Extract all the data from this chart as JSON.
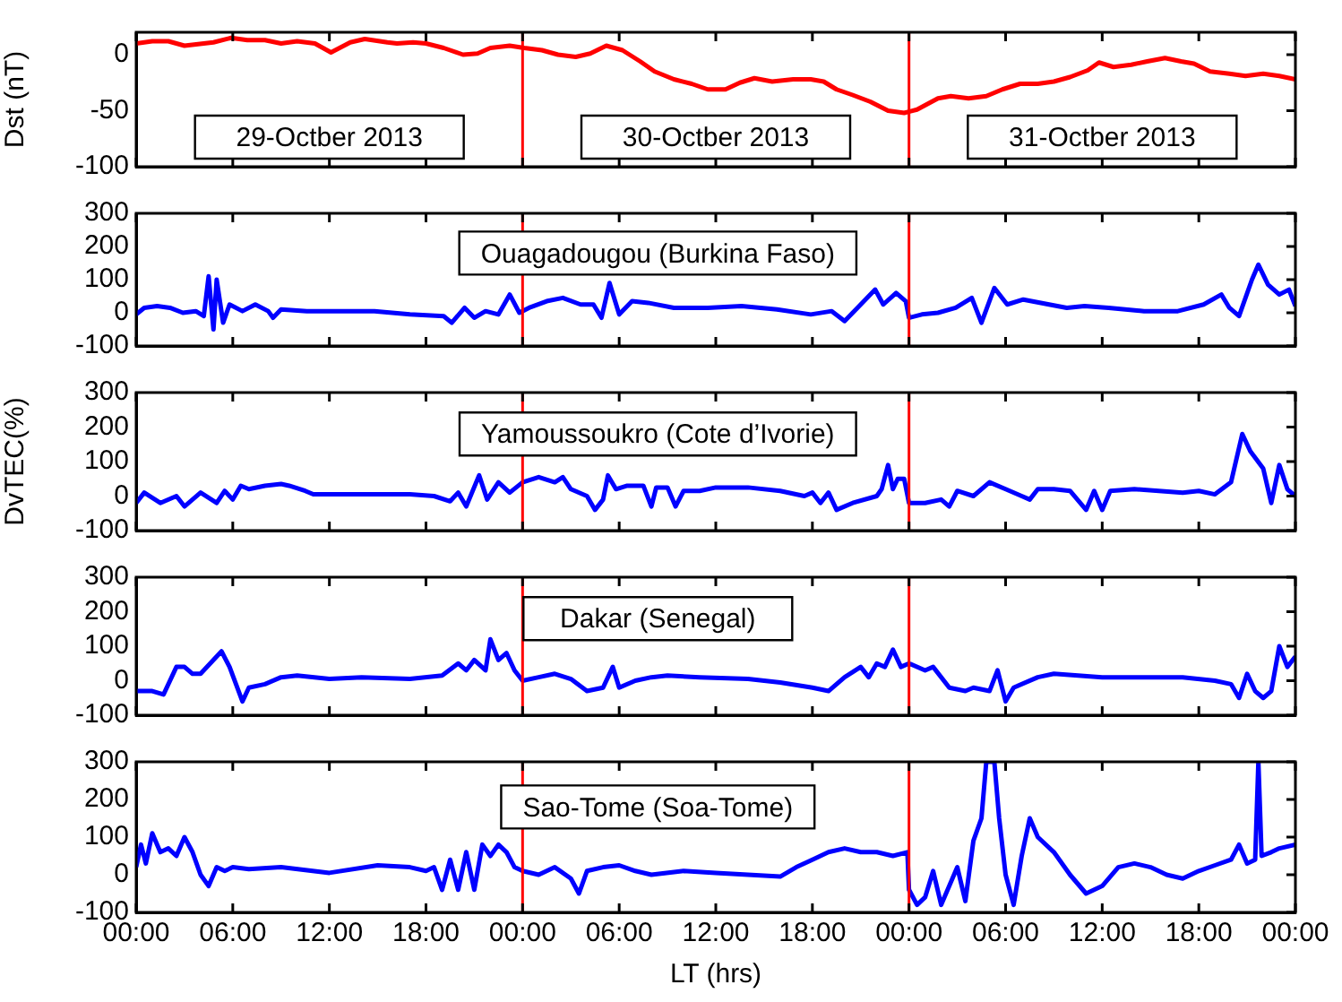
{
  "chart_data": [
    {
      "type": "line",
      "ylabel": "Dst (nT)",
      "annotations": [
        "29-Octber 2013",
        "30-Octber 2013",
        "31-Octber 2013"
      ],
      "xlim": [
        "2013-10-29T00:00",
        "2013-11-01T00:00"
      ],
      "ylim": [
        -100,
        20
      ],
      "yticks": [
        -100,
        -50,
        0
      ],
      "xticks": [
        {
          "value": "2013-10-29T00:00",
          "label": null
        },
        {
          "value": "2013-10-29T06:00",
          "label": null
        },
        {
          "value": "2013-10-29T12:00",
          "label": null
        },
        {
          "value": "2013-10-29T18:00",
          "label": null
        },
        {
          "value": "2013-10-30T00:00",
          "label": null
        },
        {
          "value": "2013-10-30T06:00",
          "label": null
        },
        {
          "value": "2013-10-30T12:00",
          "label": null
        },
        {
          "value": "2013-10-30T18:00",
          "label": null
        },
        {
          "value": "2013-10-31T00:00",
          "label": null
        },
        {
          "value": "2013-10-31T06:00",
          "label": null
        },
        {
          "value": "2013-10-31T12:00",
          "label": null
        },
        {
          "value": "2013-10-31T18:00",
          "label": null
        },
        {
          "value": "2013-11-01T00:00",
          "label": null
        }
      ],
      "tick_labels": "y",
      "grid": false,
      "legend": false,
      "ref_lines": [
        {
          "axis": "x",
          "value": "2013-10-30T00:00",
          "color": "#ff0000"
        },
        {
          "axis": "x",
          "value": "2013-10-31T00:00",
          "color": "#ff0000"
        }
      ],
      "series": [
        {
          "color": "#ff0000",
          "x": [
            "2013-10-29T00:00",
            "2013-10-29T01:00",
            "2013-10-29T02:00",
            "2013-10-29T03:00",
            "2013-10-29T04:48",
            "2013-10-29T05:54",
            "2013-10-29T06:54",
            "2013-10-29T08:00",
            "2013-10-29T09:00",
            "2013-10-29T10:00",
            "2013-10-29T11:06",
            "2013-10-29T12:06",
            "2013-10-29T13:18",
            "2013-10-29T14:12",
            "2013-10-29T15:36",
            "2013-10-29T16:12",
            "2013-10-29T17:12",
            "2013-10-29T18:00",
            "2013-10-29T19:06",
            "2013-10-29T20:18",
            "2013-10-29T21:12",
            "2013-10-29T22:00",
            "2013-10-29T23:12",
            "2013-10-30T00:06",
            "2013-10-30T01:12",
            "2013-10-30T02:12",
            "2013-10-30T03:18",
            "2013-10-30T04:12",
            "2013-10-30T05:12",
            "2013-10-30T06:12",
            "2013-10-30T07:18",
            "2013-10-30T08:12",
            "2013-10-30T09:24",
            "2013-10-30T10:30",
            "2013-10-30T11:30",
            "2013-10-30T12:36",
            "2013-10-30T13:30",
            "2013-10-30T14:24",
            "2013-10-30T15:30",
            "2013-10-30T16:48",
            "2013-10-30T17:54",
            "2013-10-30T18:42",
            "2013-10-30T19:30",
            "2013-10-30T20:30",
            "2013-10-30T21:36",
            "2013-10-30T22:42",
            "2013-10-30T23:42",
            "2013-10-31T00:30",
            "2013-10-31T01:48",
            "2013-10-31T02:36",
            "2013-10-31T03:42",
            "2013-10-31T04:48",
            "2013-10-31T05:48",
            "2013-10-31T06:54",
            "2013-10-31T08:00",
            "2013-10-31T09:00",
            "2013-10-31T10:00",
            "2013-10-31T11:06",
            "2013-10-31T11:48",
            "2013-10-31T12:42",
            "2013-10-31T13:48",
            "2013-10-31T14:48",
            "2013-10-31T15:54",
            "2013-10-31T16:54",
            "2013-10-31T17:42",
            "2013-10-31T18:42",
            "2013-10-31T19:54",
            "2013-10-31T20:54",
            "2013-10-31T22:00",
            "2013-10-31T23:00",
            "2013-11-01T00:00"
          ],
          "values": [
            10,
            12,
            12,
            8,
            11,
            15,
            13,
            13,
            10,
            12,
            10,
            2,
            11,
            14,
            11,
            10,
            11,
            10,
            6,
            0,
            1,
            6,
            8,
            6,
            4,
            0,
            -2,
            1,
            8,
            4,
            -6,
            -15,
            -22,
            -26,
            -31,
            -31,
            -25,
            -21,
            -24,
            -22,
            -22,
            -24,
            -31,
            -36,
            -42,
            -50,
            -52,
            -49,
            -39,
            -37,
            -39,
            -37,
            -31,
            -26,
            -26,
            -24,
            -20,
            -14,
            -7,
            -11,
            -9,
            -6,
            -3,
            -6,
            -8,
            -15,
            -17,
            -19,
            -17,
            -19,
            -22
          ]
        }
      ]
    },
    {
      "type": "line",
      "annotations": [
        "Ouagadougou (Burkina Faso)"
      ],
      "xlim": [
        "2013-10-29T00:00",
        "2013-11-01T00:00"
      ],
      "ylim": [
        -100,
        300
      ],
      "yticks": [
        -100,
        0,
        100,
        200,
        300
      ],
      "xticks": [
        {
          "value": "2013-10-29T00:00",
          "label": null
        },
        {
          "value": "2013-10-29T06:00",
          "label": null
        },
        {
          "value": "2013-10-29T12:00",
          "label": null
        },
        {
          "value": "2013-10-29T18:00",
          "label": null
        },
        {
          "value": "2013-10-30T00:00",
          "label": null
        },
        {
          "value": "2013-10-30T06:00",
          "label": null
        },
        {
          "value": "2013-10-30T12:00",
          "label": null
        },
        {
          "value": "2013-10-30T18:00",
          "label": null
        },
        {
          "value": "2013-10-31T00:00",
          "label": null
        },
        {
          "value": "2013-10-31T06:00",
          "label": null
        },
        {
          "value": "2013-10-31T12:00",
          "label": null
        },
        {
          "value": "2013-10-31T18:00",
          "label": null
        },
        {
          "value": "2013-11-01T00:00",
          "label": null
        }
      ],
      "tick_labels": "y",
      "grid": false,
      "legend": false,
      "ref_lines": [
        {
          "axis": "x",
          "value": "2013-10-30T00:00",
          "color": "#ff0000"
        },
        {
          "axis": "x",
          "value": "2013-10-31T00:00",
          "color": "#ff0000"
        }
      ],
      "series": [
        {
          "color": "#0000ff",
          "x": [
            "2013-10-29T00:00",
            "2013-10-29T00:30",
            "2013-10-29T01:18",
            "2013-10-29T02:06",
            "2013-10-29T02:54",
            "2013-10-29T03:42",
            "2013-10-29T04:12",
            "2013-10-29T04:30",
            "2013-10-29T04:48",
            "2013-10-29T05:00",
            "2013-10-29T05:24",
            "2013-10-29T05:48",
            "2013-10-29T06:36",
            "2013-10-29T07:24",
            "2013-10-29T08:12",
            "2013-10-29T08:30",
            "2013-10-29T09:00",
            "2013-10-29T10:36",
            "2013-10-29T12:42",
            "2013-10-29T14:48",
            "2013-10-29T17:00",
            "2013-10-29T19:06",
            "2013-10-29T19:36",
            "2013-10-29T20:24",
            "2013-10-29T21:00",
            "2013-10-29T21:42",
            "2013-10-29T22:30",
            "2013-10-29T23:12",
            "2013-10-29T23:48",
            "2013-10-30T00:24",
            "2013-10-30T01:30",
            "2013-10-30T02:30",
            "2013-10-30T03:36",
            "2013-10-30T04:24",
            "2013-10-30T04:54",
            "2013-10-30T05:24",
            "2013-10-30T06:00",
            "2013-10-30T06:48",
            "2013-10-30T07:48",
            "2013-10-30T09:24",
            "2013-10-30T11:30",
            "2013-10-30T13:36",
            "2013-10-30T15:48",
            "2013-10-30T17:54",
            "2013-10-30T19:12",
            "2013-10-30T20:00",
            "2013-10-30T20:48",
            "2013-10-30T21:54",
            "2013-10-30T22:24",
            "2013-10-30T23:12",
            "2013-10-30T23:48",
            "2013-10-31T00:00",
            "2013-10-31T00:48",
            "2013-10-31T01:48",
            "2013-10-31T02:54",
            "2013-10-31T03:54",
            "2013-10-31T04:30",
            "2013-10-31T05:18",
            "2013-10-31T06:06",
            "2013-10-31T07:06",
            "2013-10-31T08:42",
            "2013-10-31T09:48",
            "2013-10-31T10:54",
            "2013-10-31T12:24",
            "2013-10-31T14:36",
            "2013-10-31T16:42",
            "2013-10-31T18:18",
            "2013-10-31T19:24",
            "2013-10-31T19:54",
            "2013-10-31T20:30",
            "2013-10-31T21:18",
            "2013-10-31T21:42",
            "2013-10-31T22:18",
            "2013-10-31T23:00",
            "2013-10-31T23:36",
            "2013-11-01T00:00"
          ],
          "values": [
            -5,
            15,
            20,
            15,
            0,
            5,
            -10,
            110,
            -50,
            100,
            -30,
            25,
            5,
            25,
            5,
            -15,
            10,
            5,
            5,
            5,
            -5,
            -10,
            -30,
            15,
            -15,
            5,
            -5,
            55,
            0,
            15,
            35,
            45,
            25,
            25,
            -15,
            90,
            -5,
            35,
            30,
            15,
            15,
            20,
            10,
            -5,
            5,
            -25,
            15,
            70,
            25,
            60,
            35,
            -15,
            -5,
            0,
            15,
            45,
            -30,
            75,
            25,
            40,
            25,
            15,
            20,
            15,
            5,
            5,
            25,
            55,
            15,
            -10,
            100,
            145,
            85,
            55,
            70,
            20
          ]
        }
      ]
    },
    {
      "type": "line",
      "ylabel": "DvTEC(%)",
      "annotations": [
        "Yamoussoukro (Cote d’Ivorie)"
      ],
      "xlim": [
        "2013-10-29T00:00",
        "2013-11-01T00:00"
      ],
      "ylim": [
        -100,
        300
      ],
      "yticks": [
        -100,
        0,
        100,
        200,
        300
      ],
      "xticks": [
        {
          "value": "2013-10-29T00:00",
          "label": null
        },
        {
          "value": "2013-10-29T06:00",
          "label": null
        },
        {
          "value": "2013-10-29T12:00",
          "label": null
        },
        {
          "value": "2013-10-29T18:00",
          "label": null
        },
        {
          "value": "2013-10-30T00:00",
          "label": null
        },
        {
          "value": "2013-10-30T06:00",
          "label": null
        },
        {
          "value": "2013-10-30T12:00",
          "label": null
        },
        {
          "value": "2013-10-30T18:00",
          "label": null
        },
        {
          "value": "2013-10-31T00:00",
          "label": null
        },
        {
          "value": "2013-10-31T06:00",
          "label": null
        },
        {
          "value": "2013-10-31T12:00",
          "label": null
        },
        {
          "value": "2013-10-31T18:00",
          "label": null
        },
        {
          "value": "2013-11-01T00:00",
          "label": null
        }
      ],
      "tick_labels": "y",
      "grid": false,
      "legend": false,
      "ref_lines": [
        {
          "axis": "x",
          "value": "2013-10-30T00:00",
          "color": "#ff0000"
        },
        {
          "axis": "x",
          "value": "2013-10-31T00:00",
          "color": "#ff0000"
        }
      ],
      "series": [
        {
          "color": "#0000ff",
          "x": [
            "2013-10-29T00:00",
            "2013-10-29T00:30",
            "2013-10-29T01:30",
            "2013-10-29T02:30",
            "2013-10-29T03:00",
            "2013-10-29T04:00",
            "2013-10-29T05:00",
            "2013-10-29T05:30",
            "2013-10-29T06:00",
            "2013-10-29T06:30",
            "2013-10-29T07:00",
            "2013-10-29T08:00",
            "2013-10-29T09:00",
            "2013-10-29T09:30",
            "2013-10-29T10:30",
            "2013-10-29T11:00",
            "2013-10-29T14:00",
            "2013-10-29T17:00",
            "2013-10-29T18:30",
            "2013-10-29T19:30",
            "2013-10-29T20:00",
            "2013-10-29T20:30",
            "2013-10-29T21:18",
            "2013-10-29T21:48",
            "2013-10-29T22:30",
            "2013-10-29T23:12",
            "2013-10-30T00:00",
            "2013-10-30T01:00",
            "2013-10-30T02:00",
            "2013-10-30T02:30",
            "2013-10-30T03:00",
            "2013-10-30T04:00",
            "2013-10-30T04:30",
            "2013-10-30T05:00",
            "2013-10-30T05:18",
            "2013-10-30T05:48",
            "2013-10-30T06:30",
            "2013-10-30T07:30",
            "2013-10-30T08:00",
            "2013-10-30T08:18",
            "2013-10-30T09:00",
            "2013-10-30T09:30",
            "2013-10-30T10:00",
            "2013-10-30T11:00",
            "2013-10-30T12:00",
            "2013-10-30T14:00",
            "2013-10-30T16:00",
            "2013-10-30T17:30",
            "2013-10-30T18:00",
            "2013-10-30T18:30",
            "2013-10-30T19:00",
            "2013-10-30T19:30",
            "2013-10-30T20:30",
            "2013-10-30T22:00",
            "2013-10-30T22:18",
            "2013-10-30T22:42",
            "2013-10-30T23:00",
            "2013-10-30T23:18",
            "2013-10-30T23:42",
            "2013-10-31T00:00",
            "2013-10-31T01:00",
            "2013-10-31T02:00",
            "2013-10-31T02:30",
            "2013-10-31T03:00",
            "2013-10-31T04:00",
            "2013-10-31T05:00",
            "2013-10-31T06:00",
            "2013-10-31T07:00",
            "2013-10-31T07:30",
            "2013-10-31T08:00",
            "2013-10-31T09:00",
            "2013-10-31T10:00",
            "2013-10-31T11:00",
            "2013-10-31T11:30",
            "2013-10-31T12:00",
            "2013-10-31T12:30",
            "2013-10-31T14:00",
            "2013-10-31T17:00",
            "2013-10-31T18:00",
            "2013-10-31T19:00",
            "2013-10-31T20:00",
            "2013-10-31T20:42",
            "2013-10-31T21:12",
            "2013-10-31T22:00",
            "2013-10-31T22:30",
            "2013-10-31T23:00",
            "2013-10-31T23:30",
            "2013-11-01T00:00"
          ],
          "values": [
            -20,
            10,
            -20,
            0,
            -30,
            10,
            -20,
            15,
            -10,
            30,
            20,
            30,
            35,
            30,
            15,
            5,
            5,
            5,
            0,
            -15,
            10,
            -30,
            60,
            -10,
            40,
            10,
            40,
            55,
            40,
            55,
            20,
            0,
            -40,
            -10,
            60,
            20,
            30,
            30,
            -30,
            25,
            25,
            -30,
            15,
            15,
            25,
            25,
            15,
            0,
            10,
            -20,
            10,
            -40,
            -20,
            0,
            20,
            90,
            20,
            50,
            50,
            -20,
            -20,
            -10,
            -30,
            15,
            0,
            40,
            20,
            0,
            -10,
            20,
            20,
            15,
            -40,
            15,
            -40,
            15,
            20,
            10,
            15,
            5,
            40,
            180,
            130,
            80,
            -20,
            90,
            20,
            0
          ]
        }
      ]
    },
    {
      "type": "line",
      "annotations": [
        "Dakar (Senegal)"
      ],
      "xlim": [
        "2013-10-29T00:00",
        "2013-11-01T00:00"
      ],
      "ylim": [
        -100,
        300
      ],
      "yticks": [
        -100,
        0,
        100,
        200,
        300
      ],
      "xticks": [
        {
          "value": "2013-10-29T00:00",
          "label": null
        },
        {
          "value": "2013-10-29T06:00",
          "label": null
        },
        {
          "value": "2013-10-29T12:00",
          "label": null
        },
        {
          "value": "2013-10-29T18:00",
          "label": null
        },
        {
          "value": "2013-10-30T00:00",
          "label": null
        },
        {
          "value": "2013-10-30T06:00",
          "label": null
        },
        {
          "value": "2013-10-30T12:00",
          "label": null
        },
        {
          "value": "2013-10-30T18:00",
          "label": null
        },
        {
          "value": "2013-10-31T00:00",
          "label": null
        },
        {
          "value": "2013-10-31T06:00",
          "label": null
        },
        {
          "value": "2013-10-31T12:00",
          "label": null
        },
        {
          "value": "2013-10-31T18:00",
          "label": null
        },
        {
          "value": "2013-11-01T00:00",
          "label": null
        }
      ],
      "tick_labels": "y",
      "grid": false,
      "legend": false,
      "ref_lines": [
        {
          "axis": "x",
          "value": "2013-10-30T00:00",
          "color": "#ff0000"
        },
        {
          "axis": "x",
          "value": "2013-10-31T00:00",
          "color": "#ff0000"
        }
      ],
      "series": [
        {
          "color": "#0000ff",
          "x": [
            "2013-10-29T00:00",
            "2013-10-29T01:00",
            "2013-10-29T01:42",
            "2013-10-29T02:30",
            "2013-10-29T03:00",
            "2013-10-29T03:30",
            "2013-10-29T04:00",
            "2013-10-29T05:00",
            "2013-10-29T05:18",
            "2013-10-29T05:48",
            "2013-10-29T06:12",
            "2013-10-29T06:36",
            "2013-10-29T07:00",
            "2013-10-29T08:00",
            "2013-10-29T09:00",
            "2013-10-29T10:00",
            "2013-10-29T12:00",
            "2013-10-29T14:00",
            "2013-10-29T17:00",
            "2013-10-29T19:00",
            "2013-10-29T20:00",
            "2013-10-29T20:30",
            "2013-10-29T21:00",
            "2013-10-29T21:42",
            "2013-10-29T22:00",
            "2013-10-29T22:30",
            "2013-10-29T23:00",
            "2013-10-29T23:30",
            "2013-10-30T00:00",
            "2013-10-30T01:00",
            "2013-10-30T02:00",
            "2013-10-30T03:00",
            "2013-10-30T04:00",
            "2013-10-30T05:00",
            "2013-10-30T05:36",
            "2013-10-30T06:00",
            "2013-10-30T07:00",
            "2013-10-30T08:00",
            "2013-10-30T09:00",
            "2013-10-30T11:00",
            "2013-10-30T14:00",
            "2013-10-30T16:00",
            "2013-10-30T18:00",
            "2013-10-30T19:00",
            "2013-10-30T20:00",
            "2013-10-30T21:00",
            "2013-10-30T21:30",
            "2013-10-30T22:00",
            "2013-10-30T22:30",
            "2013-10-30T23:00",
            "2013-10-30T23:30",
            "2013-10-31T00:00",
            "2013-10-31T01:00",
            "2013-10-31T01:30",
            "2013-10-31T02:30",
            "2013-10-31T03:30",
            "2013-10-31T04:00",
            "2013-10-31T05:00",
            "2013-10-31T05:30",
            "2013-10-31T06:00",
            "2013-10-31T06:30",
            "2013-10-31T08:00",
            "2013-10-31T09:00",
            "2013-10-31T12:00",
            "2013-10-31T17:00",
            "2013-10-31T19:00",
            "2013-10-31T20:00",
            "2013-10-31T20:30",
            "2013-10-31T21:00",
            "2013-10-31T21:30",
            "2013-10-31T22:00",
            "2013-10-31T22:30",
            "2013-10-31T23:00",
            "2013-10-31T23:30",
            "2013-11-01T00:00"
          ],
          "values": [
            -30,
            -30,
            -40,
            40,
            40,
            20,
            20,
            70,
            85,
            40,
            -10,
            -60,
            -20,
            -10,
            10,
            15,
            5,
            10,
            5,
            15,
            50,
            30,
            60,
            30,
            120,
            60,
            80,
            30,
            0,
            10,
            20,
            5,
            -30,
            -20,
            40,
            -20,
            0,
            10,
            15,
            10,
            5,
            -5,
            -20,
            -30,
            10,
            40,
            10,
            50,
            40,
            90,
            40,
            50,
            30,
            40,
            -20,
            -30,
            -20,
            -30,
            30,
            -60,
            -20,
            10,
            20,
            10,
            10,
            0,
            -10,
            -50,
            20,
            -30,
            -50,
            -30,
            100,
            40,
            70
          ]
        }
      ]
    },
    {
      "type": "line",
      "xlabel": "LT (hrs)",
      "annotations": [
        "Sao-Tome (Soa-Tome)"
      ],
      "xlim": [
        "2013-10-29T00:00",
        "2013-11-01T00:00"
      ],
      "ylim": [
        -100,
        300
      ],
      "yticks": [
        -100,
        0,
        100,
        200,
        300
      ],
      "xticks": [
        {
          "value": "2013-10-29T00:00",
          "label": "00:00"
        },
        {
          "value": "2013-10-29T06:00",
          "label": "06:00"
        },
        {
          "value": "2013-10-29T12:00",
          "label": "12:00"
        },
        {
          "value": "2013-10-29T18:00",
          "label": "18:00"
        },
        {
          "value": "2013-10-30T00:00",
          "label": "00:00"
        },
        {
          "value": "2013-10-30T06:00",
          "label": "06:00"
        },
        {
          "value": "2013-10-30T12:00",
          "label": "12:00"
        },
        {
          "value": "2013-10-30T18:00",
          "label": "18:00"
        },
        {
          "value": "2013-10-31T00:00",
          "label": "00:00"
        },
        {
          "value": "2013-10-31T06:00",
          "label": "06:00"
        },
        {
          "value": "2013-10-31T12:00",
          "label": "12:00"
        },
        {
          "value": "2013-10-31T18:00",
          "label": "18:00"
        },
        {
          "value": "2013-11-01T00:00",
          "label": "00:00"
        }
      ],
      "grid": false,
      "legend": false,
      "ref_lines": [
        {
          "axis": "x",
          "value": "2013-10-30T00:00",
          "color": "#ff0000"
        },
        {
          "axis": "x",
          "value": "2013-10-31T00:00",
          "color": "#ff0000"
        }
      ],
      "series": [
        {
          "color": "#0000ff",
          "x": [
            "2013-10-29T00:00",
            "2013-10-29T00:18",
            "2013-10-29T00:36",
            "2013-10-29T01:00",
            "2013-10-29T01:30",
            "2013-10-29T02:00",
            "2013-10-29T02:30",
            "2013-10-29T03:00",
            "2013-10-29T03:30",
            "2013-10-29T04:00",
            "2013-10-29T04:30",
            "2013-10-29T05:00",
            "2013-10-29T05:30",
            "2013-10-29T06:00",
            "2013-10-29T07:00",
            "2013-10-29T09:00",
            "2013-10-29T12:00",
            "2013-10-29T15:00",
            "2013-10-29T17:00",
            "2013-10-29T18:00",
            "2013-10-29T18:30",
            "2013-10-29T19:00",
            "2013-10-29T19:30",
            "2013-10-29T20:00",
            "2013-10-29T20:30",
            "2013-10-29T21:00",
            "2013-10-29T21:30",
            "2013-10-29T22:00",
            "2013-10-29T22:30",
            "2013-10-29T23:00",
            "2013-10-29T23:30",
            "2013-10-30T00:00",
            "2013-10-30T01:00",
            "2013-10-30T02:00",
            "2013-10-30T03:00",
            "2013-10-30T03:30",
            "2013-10-30T04:00",
            "2013-10-30T05:00",
            "2013-10-30T06:00",
            "2013-10-30T07:00",
            "2013-10-30T08:00",
            "2013-10-30T10:00",
            "2013-10-30T12:00",
            "2013-10-30T14:00",
            "2013-10-30T16:00",
            "2013-10-30T17:00",
            "2013-10-30T18:00",
            "2013-10-30T19:00",
            "2013-10-30T20:00",
            "2013-10-30T21:00",
            "2013-10-30T22:00",
            "2013-10-30T23:00",
            "2013-10-30T23:54",
            "2013-10-31T00:00",
            "2013-10-31T00:30",
            "2013-10-31T01:00",
            "2013-10-31T01:30",
            "2013-10-31T02:00",
            "2013-10-31T03:00",
            "2013-10-31T03:30",
            "2013-10-31T04:00",
            "2013-10-31T04:30",
            "2013-10-31T04:48",
            "2013-10-31T05:18",
            "2013-10-31T05:36",
            "2013-10-31T06:00",
            "2013-10-31T06:30",
            "2013-10-31T07:00",
            "2013-10-31T07:30",
            "2013-10-31T08:00",
            "2013-10-31T09:00",
            "2013-10-31T10:00",
            "2013-10-31T11:00",
            "2013-10-31T12:00",
            "2013-10-31T13:00",
            "2013-10-31T14:00",
            "2013-10-31T15:00",
            "2013-10-31T16:00",
            "2013-10-31T17:00",
            "2013-10-31T18:00",
            "2013-10-31T19:00",
            "2013-10-31T20:00",
            "2013-10-31T20:30",
            "2013-10-31T21:00",
            "2013-10-31T21:30",
            "2013-10-31T21:42",
            "2013-10-31T21:54",
            "2013-10-31T22:30",
            "2013-10-31T23:00",
            "2013-11-01T00:00"
          ],
          "values": [
            20,
            80,
            30,
            110,
            60,
            70,
            50,
            100,
            60,
            0,
            -30,
            20,
            10,
            20,
            15,
            20,
            5,
            25,
            20,
            10,
            20,
            -40,
            40,
            -40,
            60,
            -40,
            80,
            50,
            80,
            60,
            20,
            10,
            0,
            20,
            -10,
            -50,
            10,
            20,
            25,
            10,
            0,
            10,
            5,
            0,
            -5,
            20,
            40,
            60,
            70,
            60,
            60,
            50,
            60,
            -40,
            -80,
            -60,
            10,
            -80,
            20,
            -70,
            90,
            150,
            300,
            300,
            150,
            0,
            -80,
            50,
            150,
            100,
            60,
            0,
            -50,
            -30,
            20,
            30,
            20,
            0,
            -10,
            10,
            25,
            40,
            80,
            30,
            40,
            300,
            50,
            60,
            70,
            80
          ]
        }
      ]
    }
  ]
}
